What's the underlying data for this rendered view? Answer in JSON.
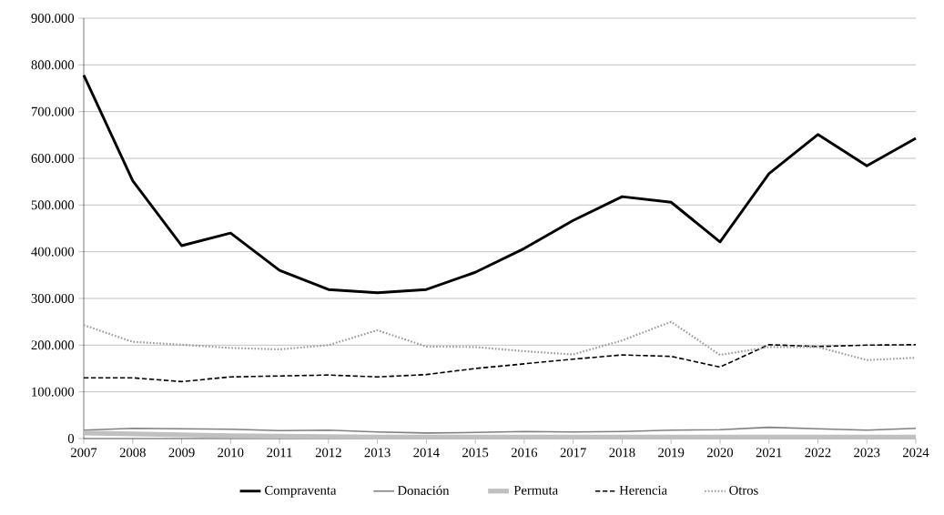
{
  "chart_data": {
    "type": "line",
    "x": [
      2007,
      2008,
      2009,
      2010,
      2011,
      2012,
      2013,
      2014,
      2015,
      2016,
      2017,
      2018,
      2019,
      2020,
      2021,
      2022,
      2023,
      2024
    ],
    "series": [
      {
        "name": "Compraventa",
        "color": "#000000",
        "line_style": "solid",
        "values": [
          778000,
          552000,
          413000,
          440000,
          360000,
          319000,
          312000,
          319000,
          356000,
          407000,
          467000,
          518000,
          506000,
          421000,
          567000,
          651000,
          584000,
          643000
        ]
      },
      {
        "name": "Donación",
        "color": "#808080",
        "line_style": "solid",
        "values": [
          18000,
          22000,
          21000,
          20000,
          17000,
          18000,
          14000,
          12000,
          13000,
          15000,
          14000,
          15000,
          18000,
          19000,
          24000,
          21000,
          18000,
          22000
        ]
      },
      {
        "name": "Permuta",
        "color": "#c0c0c0",
        "line_style": "solid",
        "values": [
          12000,
          10000,
          8000,
          6000,
          5000,
          4000,
          3000,
          3000,
          3000,
          3000,
          3000,
          3000,
          3000,
          3000,
          3000,
          3000,
          3000,
          3000
        ]
      },
      {
        "name": "Herencia",
        "color": "#000000",
        "line_style": "dashed",
        "values": [
          130000,
          130000,
          122000,
          132000,
          134000,
          136000,
          132000,
          137000,
          150000,
          160000,
          170000,
          179000,
          176000,
          153000,
          201000,
          197000,
          200000,
          201000
        ]
      },
      {
        "name": "Otros",
        "color": "#999999",
        "line_style": "dotted",
        "values": [
          243000,
          207000,
          201000,
          194000,
          191000,
          200000,
          232000,
          197000,
          196000,
          187000,
          180000,
          210000,
          250000,
          179000,
          196000,
          196000,
          168000,
          173000
        ]
      }
    ],
    "xlim": [
      2007,
      2024
    ],
    "xticks": [
      2007,
      2008,
      2009,
      2010,
      2011,
      2012,
      2013,
      2014,
      2015,
      2016,
      2017,
      2018,
      2019,
      2020,
      2021,
      2022,
      2023,
      2024
    ],
    "ylim": [
      0,
      900000
    ],
    "yticks": [
      {
        "value": 0,
        "label": "0"
      },
      {
        "value": 100000,
        "label": "100.000"
      },
      {
        "value": 200000,
        "label": "200.000"
      },
      {
        "value": 300000,
        "label": "300.000"
      },
      {
        "value": 400000,
        "label": "400.000"
      },
      {
        "value": 500000,
        "label": "500.000"
      },
      {
        "value": 600000,
        "label": "600.000"
      },
      {
        "value": 700000,
        "label": "700.000"
      },
      {
        "value": 800000,
        "label": "800.000"
      },
      {
        "value": 900000,
        "label": "900.000"
      }
    ],
    "grid": "y",
    "legend": "bottom",
    "marker": "none"
  }
}
